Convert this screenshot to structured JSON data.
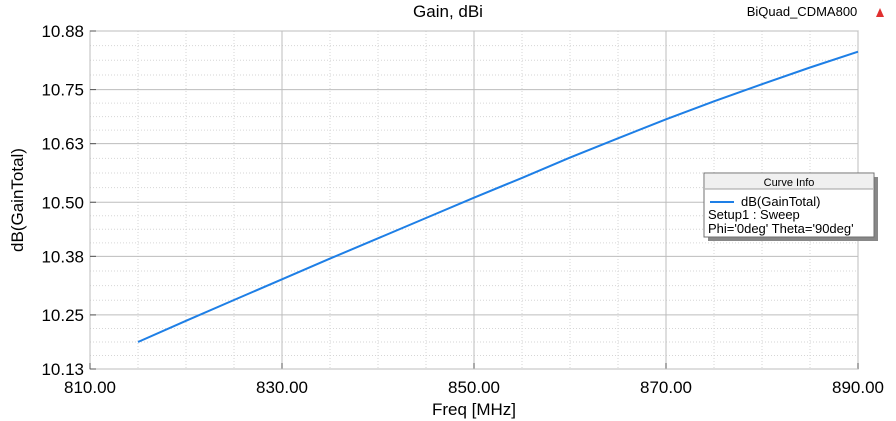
{
  "design_name": "BiQuad_CDMA800",
  "chart_data": {
    "type": "line",
    "title": "Gain, dBi",
    "xlabel": "Freq [MHz]",
    "ylabel": "dB(GainTotal)",
    "xlim": [
      810.0,
      890.0
    ],
    "ylim": [
      10.13,
      10.88
    ],
    "x_ticks": [
      810.0,
      830.0,
      850.0,
      870.0,
      890.0
    ],
    "x_tick_labels": [
      "810.00",
      "830.00",
      "850.00",
      "870.00",
      "890.00"
    ],
    "y_ticks": [
      10.13,
      10.25,
      10.38,
      10.5,
      10.63,
      10.75,
      10.88
    ],
    "y_tick_labels": [
      "10.13",
      "10.25",
      "10.38",
      "10.50",
      "10.63",
      "10.75",
      "10.88"
    ],
    "grid": true,
    "legend": {
      "title": "Curve Info",
      "placement": "right",
      "entries": [
        {
          "name": "dB(GainTotal)",
          "color": "#1E7FE6",
          "setup": "Setup1 : Sweep",
          "params": "Phi='0deg' Theta='90deg'"
        }
      ]
    },
    "series": [
      {
        "name": "dB(GainTotal)",
        "color": "#1E7FE6",
        "x": [
          815,
          820,
          825,
          830,
          835,
          840,
          845,
          850,
          855,
          860,
          865,
          870,
          875,
          880,
          885,
          890
        ],
        "y": [
          10.19,
          10.237,
          10.283,
          10.329,
          10.375,
          10.42,
          10.465,
          10.51,
          10.554,
          10.599,
          10.642,
          10.684,
          10.724,
          10.762,
          10.799,
          10.834
        ]
      }
    ]
  }
}
